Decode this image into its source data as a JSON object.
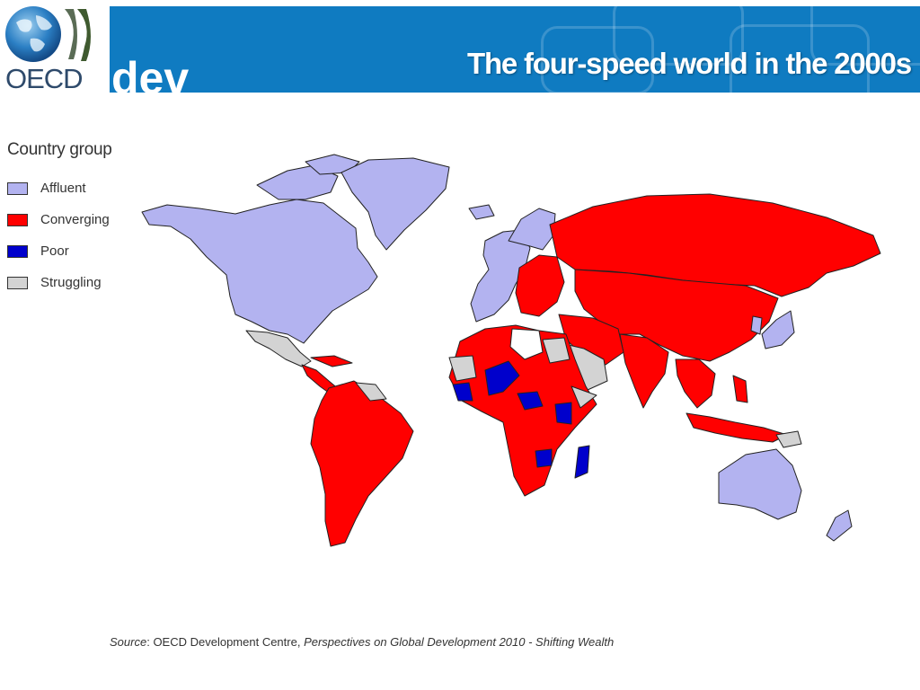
{
  "header": {
    "title": "The four-speed world in the 2000s",
    "logo_text": "OECD",
    "logo_sub": "dev",
    "banner_color": "#0f7bc1"
  },
  "legend": {
    "title": "Country group",
    "items": [
      {
        "label": "Affluent",
        "color": "#b3b3f0"
      },
      {
        "label": "Converging",
        "color": "#ff0000"
      },
      {
        "label": "Poor",
        "color": "#0000cc"
      },
      {
        "label": "Struggling",
        "color": "#d3d3d3"
      }
    ]
  },
  "source": {
    "prefix": "Source",
    "separator": ": ",
    "org": "OECD Development Centre, ",
    "publication": "Perspectives on Global Development 2010 - Shifting Wealth"
  }
}
